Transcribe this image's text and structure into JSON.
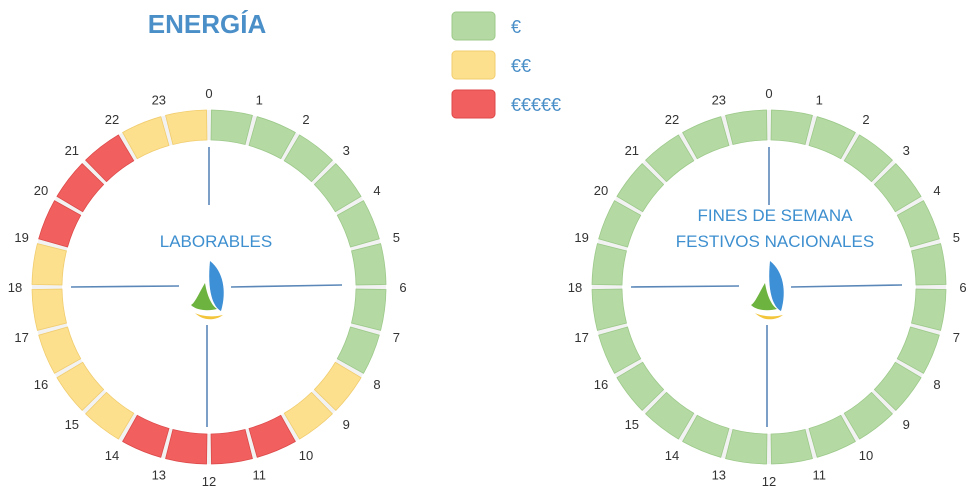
{
  "title": "ENERGÍA",
  "colors": {
    "cheap": "#b5d9a3",
    "cheap_border": "#9cc98a",
    "mid": "#fde08d",
    "mid_border": "#f0cc6e",
    "expensive": "#f25f5f",
    "expensive_border": "#dd4a4a",
    "axis": "#5a87b8",
    "ring_track": "#f2f2f2"
  },
  "legend": [
    {
      "tier": "cheap",
      "label": "€"
    },
    {
      "tier": "mid",
      "label": "€€"
    },
    {
      "tier": "expensive",
      "label": "€€€€€"
    }
  ],
  "hour_labels": [
    "0",
    "1",
    "2",
    "3",
    "4",
    "5",
    "6",
    "7",
    "8",
    "9",
    "10",
    "11",
    "12",
    "13",
    "14",
    "15",
    "16",
    "17",
    "18",
    "19",
    "20",
    "21",
    "22",
    "23"
  ],
  "clocks": [
    {
      "id": "laborables",
      "label_lines": [
        "LABORABLES"
      ],
      "hour_tiers": [
        "cheap",
        "cheap",
        "cheap",
        "cheap",
        "cheap",
        "cheap",
        "cheap",
        "cheap",
        "mid",
        "mid",
        "expensive",
        "expensive",
        "expensive",
        "expensive",
        "mid",
        "mid",
        "mid",
        "mid",
        "mid",
        "expensive",
        "expensive",
        "expensive",
        "mid",
        "mid"
      ]
    },
    {
      "id": "fines-de-semana",
      "label_lines": [
        "FINES DE SEMANA",
        "FESTIVOS NACIONALES"
      ],
      "hour_tiers": [
        "cheap",
        "cheap",
        "cheap",
        "cheap",
        "cheap",
        "cheap",
        "cheap",
        "cheap",
        "cheap",
        "cheap",
        "cheap",
        "cheap",
        "cheap",
        "cheap",
        "cheap",
        "cheap",
        "cheap",
        "cheap",
        "cheap",
        "cheap",
        "cheap",
        "cheap",
        "cheap",
        "cheap"
      ]
    }
  ]
}
